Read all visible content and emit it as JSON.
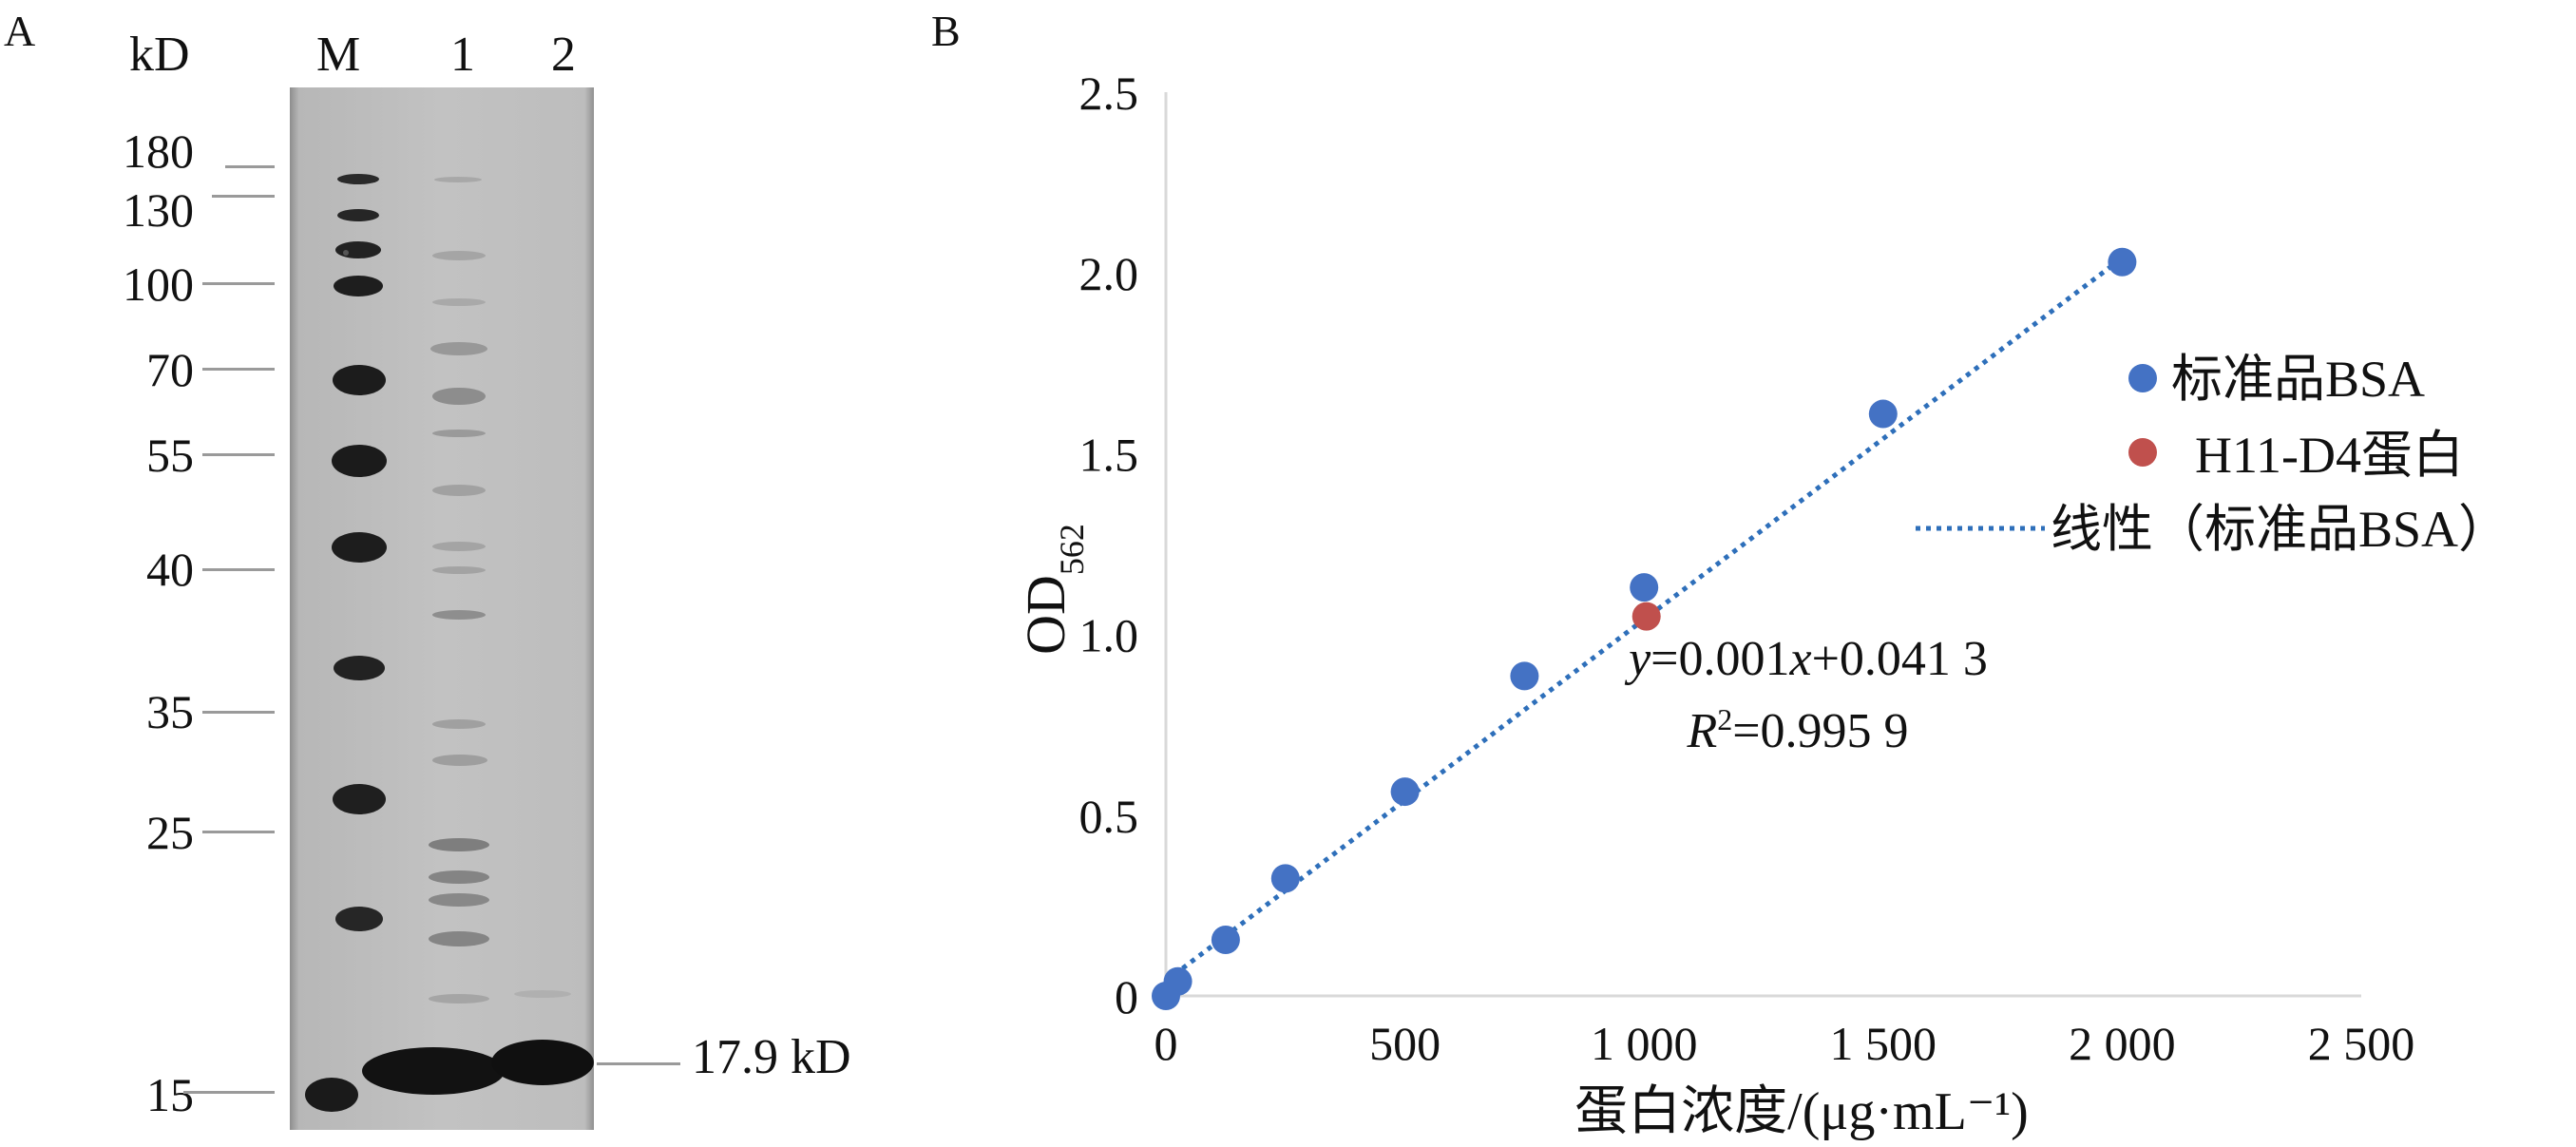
{
  "panel_a": {
    "label": "A",
    "unit_label": "kD",
    "lane_labels": [
      "M",
      "1",
      "2"
    ],
    "marker_labels": [
      "180",
      "130",
      "100",
      "70",
      "55",
      "40",
      "35",
      "25",
      "15"
    ],
    "annotation": "17.9 kD"
  },
  "panel_b": {
    "label": "B"
  },
  "chart_data": {
    "type": "scatter",
    "xlabel": "蛋白浓度/(μg·mL⁻¹)",
    "ylabel_main": "OD",
    "ylabel_sub": "562",
    "xlim": [
      0,
      2500
    ],
    "ylim": [
      0,
      2.5
    ],
    "xticks": [
      0,
      500,
      1000,
      1500,
      2000,
      2500
    ],
    "xtick_labels": [
      "0",
      "500",
      "1 000",
      "1 500",
      "2 000",
      "2 500"
    ],
    "yticks": [
      0,
      0.5,
      1.0,
      1.5,
      2.0,
      2.5
    ],
    "ytick_labels": [
      "0",
      "0.5",
      "1.0",
      "1.5",
      "2.0",
      "2.5"
    ],
    "grid": false,
    "legend_position": "right",
    "series": [
      {
        "name": "标准品BSA",
        "color": "#4472c4",
        "points": [
          [
            0,
            0.0
          ],
          [
            25,
            0.04
          ],
          [
            125,
            0.155
          ],
          [
            250,
            0.325
          ],
          [
            500,
            0.565
          ],
          [
            750,
            0.885
          ],
          [
            1000,
            1.13
          ],
          [
            1500,
            1.61
          ],
          [
            2000,
            2.03
          ]
        ]
      },
      {
        "name": "H11-D4蛋白",
        "color": "#c0504d",
        "points": [
          [
            1005,
            1.05
          ]
        ]
      }
    ],
    "trendline": {
      "name": "线性（标准品BSA）",
      "color": "#2e6fba",
      "slope": 0.001,
      "intercept": 0.0413,
      "x_range": [
        0,
        2000
      ]
    },
    "equation": {
      "y_var": "y",
      "eq_part1": "=0.001",
      "x_var": "x",
      "eq_part2": "+0.041 3",
      "r_var": "R",
      "r_sup": "2",
      "r_rest": "=0.995 9"
    }
  }
}
